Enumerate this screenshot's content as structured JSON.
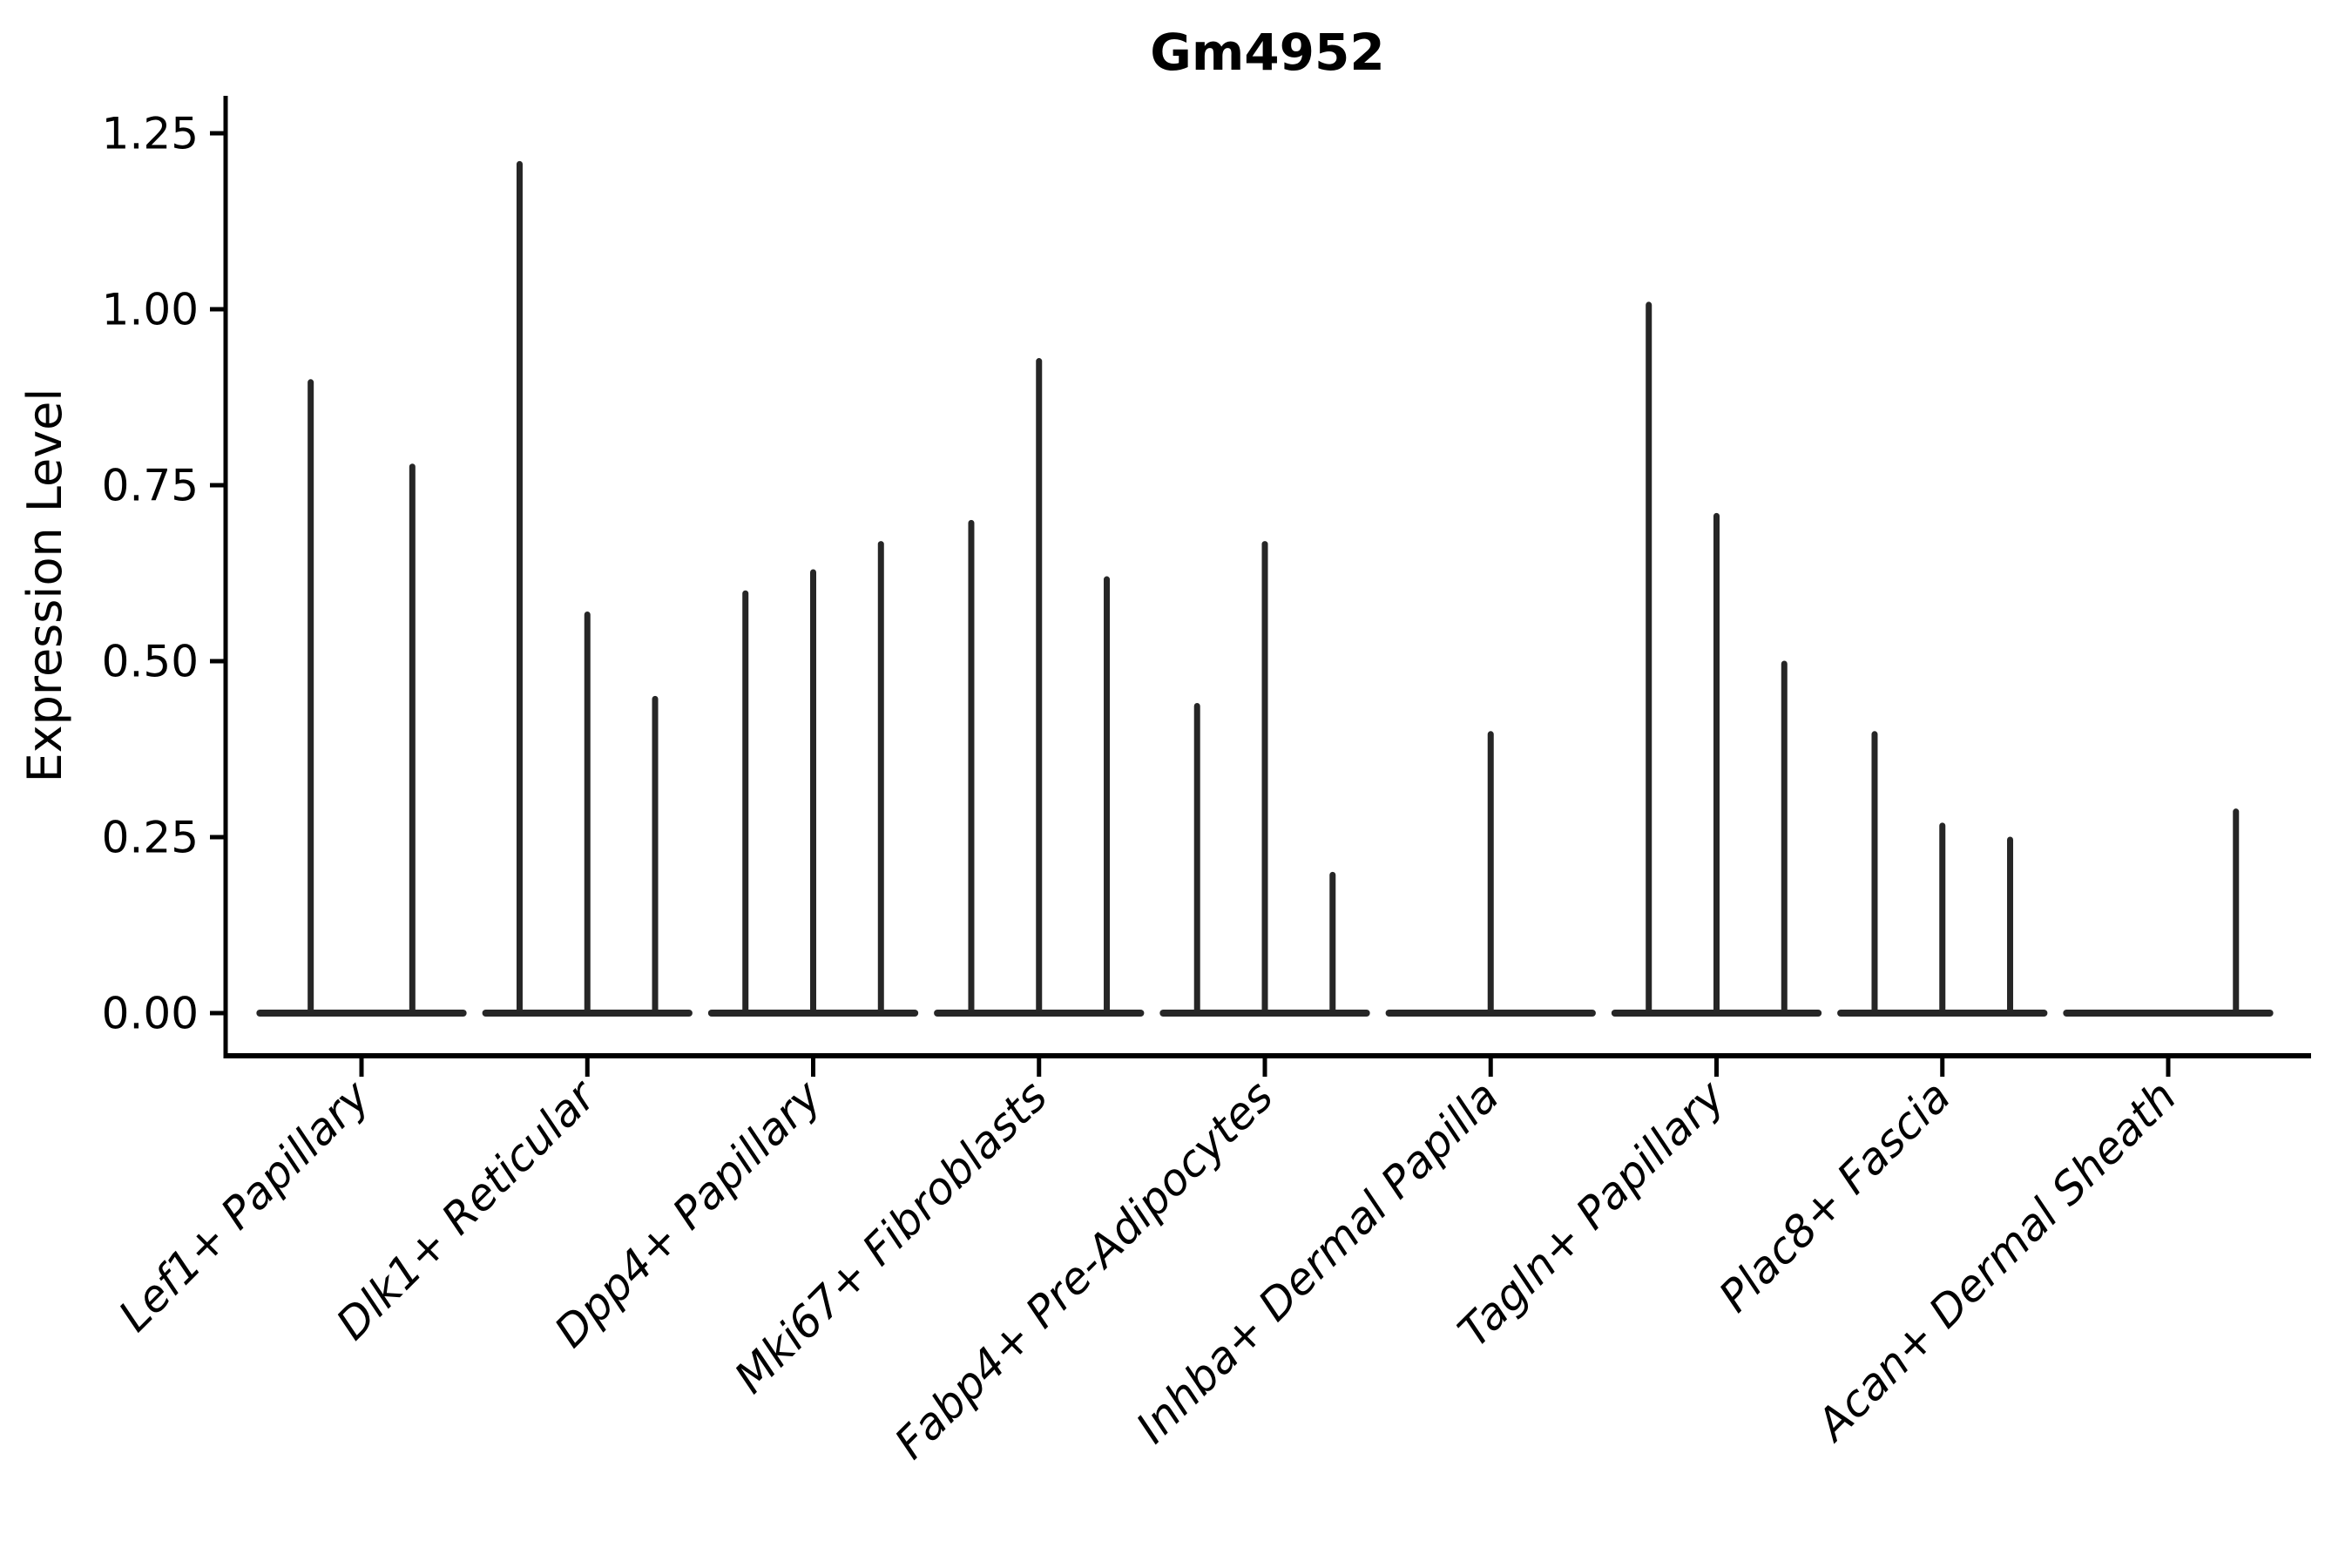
{
  "chart_data": {
    "type": "violin",
    "title": "Gm4952",
    "xlabel": "",
    "ylabel": "Expression Level",
    "ylim": [
      0,
      1.25
    ],
    "yticks": [
      0.0,
      0.25,
      0.5,
      0.75,
      1.0,
      1.25
    ],
    "ytick_labels": [
      "0.00",
      "0.25",
      "0.50",
      "0.75",
      "1.00",
      "1.25"
    ],
    "grid": false,
    "legend_position": "none",
    "style_notes": "needle-thin black violins collapsed at 0 with per-sample spikes; only left and bottom spines; x labels rotated 45deg italic",
    "axis_color": "#000000",
    "violin_color": "#262626",
    "categories": [
      "Lef1+ Papillary",
      "Dlk1+ Reticular",
      "Dpp4+ Papillary",
      "Mki67+ Fibroblasts",
      "Fabp4+ Pre-Adipocytes",
      "Inhba+ Dermal Papilla",
      "Tagln+ Papillary",
      "Plac8+ Fascia",
      "Acan+ Dermal Sheath"
    ],
    "groups": [
      {
        "category": "Lef1+ Papillary",
        "violins": [
          {
            "slot": -0.225,
            "max": 0.9
          },
          {
            "slot": 0.225,
            "max": 0.78
          }
        ]
      },
      {
        "category": "Dlk1+ Reticular",
        "violins": [
          {
            "slot": -0.3,
            "max": 1.21
          },
          {
            "slot": 0.0,
            "max": 0.57
          },
          {
            "slot": 0.3,
            "max": 0.45
          }
        ]
      },
      {
        "category": "Dpp4+ Papillary",
        "violins": [
          {
            "slot": -0.3,
            "max": 0.6
          },
          {
            "slot": 0.0,
            "max": 0.63
          },
          {
            "slot": 0.3,
            "max": 0.67
          }
        ]
      },
      {
        "category": "Mki67+ Fibroblasts",
        "violins": [
          {
            "slot": -0.3,
            "max": 0.7
          },
          {
            "slot": 0.0,
            "max": 0.93
          },
          {
            "slot": 0.3,
            "max": 0.62
          }
        ]
      },
      {
        "category": "Fabp4+ Pre-Adipocytes",
        "violins": [
          {
            "slot": -0.3,
            "max": 0.44
          },
          {
            "slot": 0.0,
            "max": 0.67
          },
          {
            "slot": 0.3,
            "max": 0.2
          }
        ]
      },
      {
        "category": "Inhba+ Dermal Papilla",
        "violins": [
          {
            "slot": 0.0,
            "max": 0.4
          }
        ]
      },
      {
        "category": "Tagln+ Papillary",
        "violins": [
          {
            "slot": -0.3,
            "max": 1.01
          },
          {
            "slot": 0.0,
            "max": 0.71
          },
          {
            "slot": 0.3,
            "max": 0.5
          }
        ]
      },
      {
        "category": "Plac8+ Fascia",
        "violins": [
          {
            "slot": -0.3,
            "max": 0.4
          },
          {
            "slot": 0.0,
            "max": 0.27
          },
          {
            "slot": 0.3,
            "max": 0.25
          }
        ]
      },
      {
        "category": "Acan+ Dermal Sheath",
        "violins": [
          {
            "slot": 0.3,
            "max": 0.29
          }
        ]
      }
    ],
    "baseline_halfwidth_units": 0.45
  }
}
